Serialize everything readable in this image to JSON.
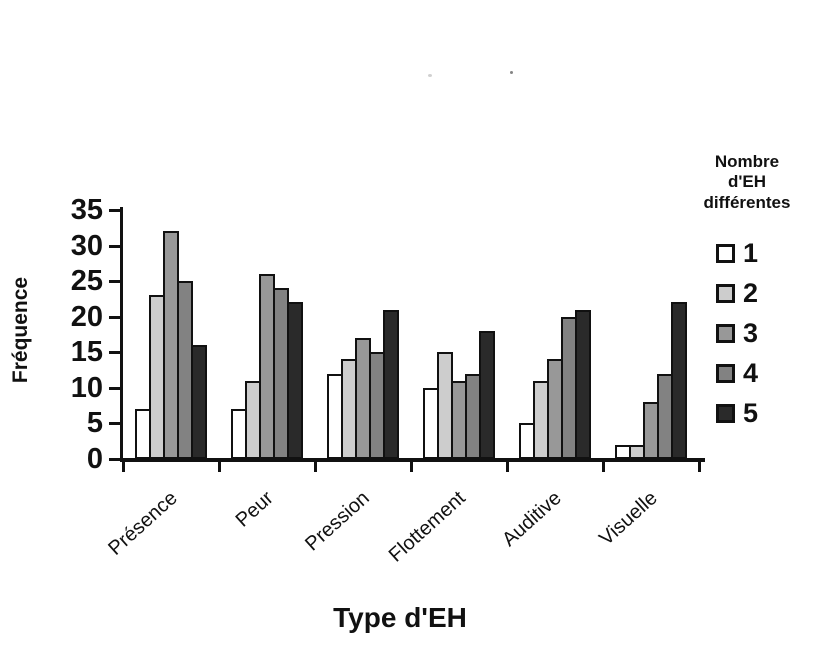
{
  "chart_data": {
    "type": "bar",
    "title": "",
    "categories": [
      "Présence",
      "Peur",
      "Pression",
      "Flottement",
      "Auditive",
      "Visuelle"
    ],
    "series": [
      {
        "name": "1",
        "color": "#ffffff",
        "values": [
          7,
          7,
          12,
          10,
          5,
          2
        ]
      },
      {
        "name": "2",
        "color": "#cdcdcd",
        "values": [
          23,
          11,
          14,
          15,
          11,
          2
        ]
      },
      {
        "name": "3",
        "color": "#989898",
        "values": [
          32,
          26,
          17,
          11,
          14,
          8
        ]
      },
      {
        "name": "4",
        "color": "#828282",
        "values": [
          25,
          24,
          15,
          12,
          20,
          12
        ]
      },
      {
        "name": "5",
        "color": "#2a2a2a",
        "values": [
          16,
          22,
          21,
          18,
          21,
          22
        ]
      }
    ],
    "xlabel": "Type d'EH",
    "ylabel": "Fréquence",
    "ylim": [
      0,
      35
    ],
    "yticks": [
      0,
      5,
      10,
      15,
      20,
      25,
      30,
      35
    ],
    "grid": false,
    "legend_position": "right",
    "legend_title": "Nombre d'EH différentes",
    "legend_title_lines": [
      "Nombre",
      "d'EH",
      "différentes"
    ],
    "bar_border_color": "#111111"
  }
}
